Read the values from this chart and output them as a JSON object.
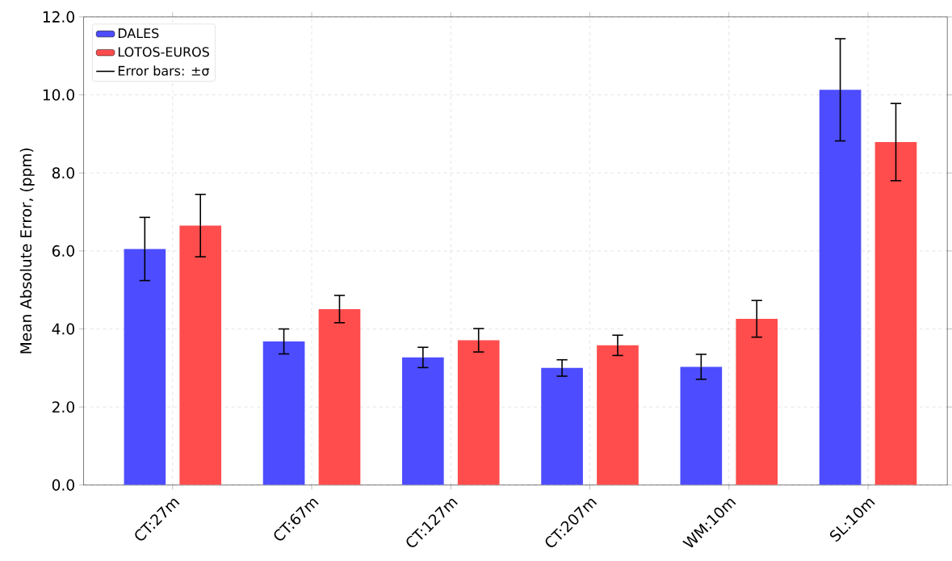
{
  "chart_data": {
    "type": "bar",
    "ylabel": "Mean Absolute Error, (ppm)",
    "categories": [
      "CT:27m",
      "CT:67m",
      "CT:127m",
      "CT:207m",
      "WM:10m",
      "SL:10m"
    ],
    "series": [
      {
        "name": "DALES",
        "color": "#4d4dff",
        "values": [
          6.05,
          3.68,
          3.27,
          3.0,
          3.03,
          10.13
        ],
        "errors": [
          0.81,
          0.32,
          0.26,
          0.21,
          0.32,
          1.31
        ]
      },
      {
        "name": "LOTOS-EUROS",
        "color": "#ff4d4d",
        "values": [
          6.65,
          4.51,
          3.71,
          3.58,
          4.26,
          8.79
        ],
        "errors": [
          0.8,
          0.35,
          0.3,
          0.26,
          0.47,
          0.99
        ]
      }
    ],
    "annotations": [
      "Error bars: ±σ"
    ],
    "ylim": [
      0,
      12
    ],
    "yticks": [
      {
        "value": 0,
        "label": "0.0"
      },
      {
        "value": 2,
        "label": "2.0"
      },
      {
        "value": 4,
        "label": "4.0"
      },
      {
        "value": 6,
        "label": "6.0"
      },
      {
        "value": 8,
        "label": "8.0"
      },
      {
        "value": 10,
        "label": "10.0"
      },
      {
        "value": 12,
        "label": "12.0"
      }
    ],
    "grid": true,
    "legend": "top left"
  }
}
